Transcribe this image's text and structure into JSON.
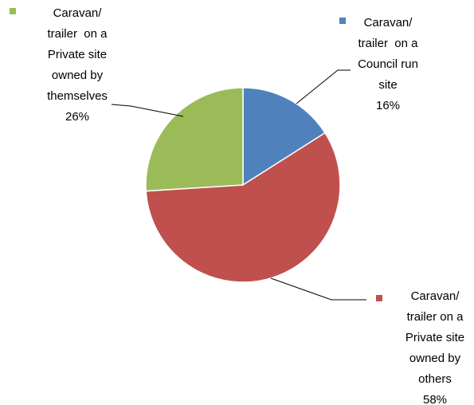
{
  "chart_data": {
    "type": "pie",
    "categories": [
      "Caravan/ trailer  on a Council run site",
      "Caravan/ trailer on a Private site owned by others",
      "Caravan/ trailer  on a Private site owned by themselves"
    ],
    "values": [
      16,
      58,
      26
    ],
    "value_labels": [
      "16%",
      "58%",
      "26%"
    ],
    "colors": [
      "#4f81bd",
      "#c0504d",
      "#9bbb59"
    ]
  }
}
